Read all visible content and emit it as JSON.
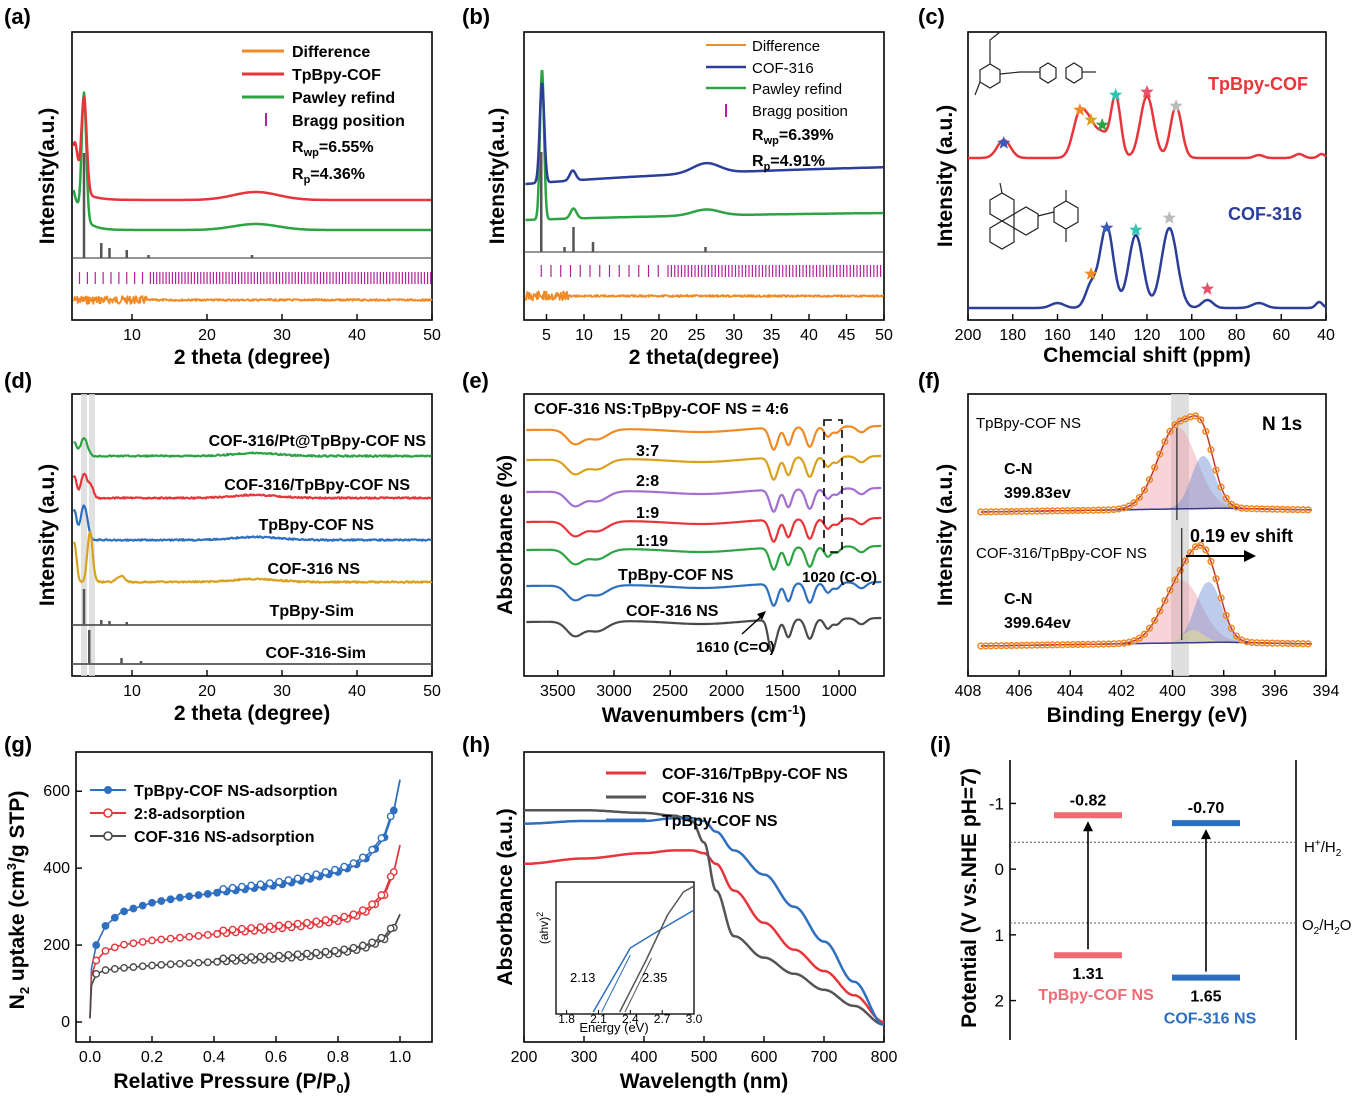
{
  "colors": {
    "red": "#e8353b",
    "green": "#2ca444",
    "orange": "#f08a24",
    "navy": "#2a3e9a",
    "magenta": "#b0219b",
    "grey": "#555555",
    "gold": "#d9a21e",
    "purple": "#a36fd0",
    "blue": "#2f6fc0",
    "darkgrey": "#4a4a4a",
    "pink": "#ee6b74",
    "steel": "#2d6fbf"
  },
  "panels": {
    "a": {
      "label": "(a)",
      "xlabel": "2 theta (degree)",
      "ylabel": "Intensity(a.u.)",
      "xticks": [
        "10",
        "20",
        "30",
        "40",
        "50"
      ],
      "legend": [
        "Difference",
        "TpBpy-COF",
        "Pawley refind",
        "Bragg position"
      ],
      "rwp": "R",
      "rwp_sub": "wp",
      "rwp_val": "=6.55%",
      "rp": "R",
      "rp_sub": "p",
      "rp_val": "=4.36%"
    },
    "b": {
      "label": "(b)",
      "xlabel": "2 theta(degree)",
      "ylabel": "Intensity(a.u.)",
      "xticks": [
        "5",
        "10",
        "15",
        "20",
        "25",
        "30",
        "35",
        "40",
        "45",
        "50"
      ],
      "legend": [
        "Difference",
        "COF-316",
        "Pawley refind",
        "Bragg position"
      ],
      "rwp": "R",
      "rwp_sub": "wp",
      "rwp_val": "=6.39%",
      "rp": "R",
      "rp_sub": "p",
      "rp_val": "=4.91%"
    },
    "c": {
      "label": "(c)",
      "xlabel": "Chemcial shift (ppm)",
      "ylabel": "Intensity (a.u.)",
      "xticks": [
        "200",
        "180",
        "160",
        "140",
        "120",
        "100",
        "80",
        "60",
        "40"
      ],
      "series": [
        "TpBpy-COF",
        "COF-316"
      ]
    },
    "d": {
      "label": "(d)",
      "xlabel": "2 theta (degree)",
      "ylabel": "Intensity (a.u.)",
      "xticks": [
        "10",
        "20",
        "30",
        "40",
        "50"
      ],
      "series": [
        "COF-316/Pt@TpBpy-COF NS",
        "COF-316/TpBpy-COF NS",
        "TpBpy-COF NS",
        "COF-316 NS",
        "TpBpy-Sim",
        "COF-316-Sim"
      ]
    },
    "e": {
      "label": "(e)",
      "xlabel": "Wavenumbers (cm",
      "xlabel_sup": "-1",
      "xlabel_end": ")",
      "ylabel": "Absorbance (%)",
      "xticks": [
        "3500",
        "3000",
        "2500",
        "2000",
        "1500",
        "1000"
      ],
      "ratio_title": "COF-316 NS:TpBpy-COF NS = 4:6",
      "ratios": [
        "3:7",
        "2:8",
        "1:9",
        "1:19"
      ],
      "lab_tp": "TpBpy-COF NS",
      "lab_cof": "COF-316 NS",
      "ann1": "1610 (C=O)",
      "ann2": "1020 (C-O)"
    },
    "f": {
      "label": "(f)",
      "xlabel": "Binding Energy (eV)",
      "ylabel": "Intensity (a.u.)",
      "xticks": [
        "408",
        "406",
        "404",
        "402",
        "400",
        "398",
        "396",
        "394"
      ],
      "title": "N 1s",
      "top_name": "TpBpy-COF NS",
      "bottom_name": "COF-316/TpBpy-COF NS",
      "cn": "C-N",
      "cn_top": "399.83ev",
      "cn_bottom": "399.64ev",
      "shift": "0.19 ev shift"
    },
    "g": {
      "label": "(g)",
      "xlabel": "Relative Pressure (P/P",
      "xlabel_sub": "0",
      "xlabel_end": ")",
      "ylabel": "N",
      "ylabel_sub": "2",
      "ylabel_mid": " uptake (cm",
      "ylabel_sup": "3",
      "ylabel_end": "/g STP)",
      "xticks": [
        "0.0",
        "0.2",
        "0.4",
        "0.6",
        "0.8",
        "1.0"
      ],
      "yticks": [
        "0",
        "200",
        "400",
        "600"
      ],
      "legend": [
        "TpBpy-COF NS-adsorption",
        "2:8-adsorption",
        "COF-316 NS-adsorption"
      ]
    },
    "h": {
      "label": "(h)",
      "xlabel": "Wavelength (nm)",
      "ylabel": "Absorbance (a.u.)",
      "xticks": [
        "200",
        "300",
        "400",
        "500",
        "600",
        "700",
        "800"
      ],
      "legend": [
        "COF-316/TpBpy-COF NS",
        "COF-316 NS",
        "TpBpy-COF NS"
      ],
      "inset_ylabel": "(ahv)",
      "inset_ylabel_sup": "2",
      "inset_xlabel": "Energy (eV)",
      "inset_xticks": [
        "1.8",
        "2.1",
        "2.4",
        "2.7",
        "3.0"
      ],
      "gap1": "2.13",
      "gap2": "2.35"
    },
    "i": {
      "label": "(i)",
      "ylabel": "Potential (V vs.NHE pH=7)",
      "yticks": [
        "-1",
        "0",
        "1",
        "2"
      ],
      "tp_cb": "-0.82",
      "tp_vb": "1.31",
      "cof_cb": "-0.70",
      "cof_vb": "1.65",
      "tp_name": "TpBpy-COF NS",
      "cof_name": "COF-316 NS",
      "h_ref": "H",
      "h_ref_sup": "+",
      "h_ref_end": "/H",
      "h_ref_sub": "2",
      "o_ref": "O",
      "o_ref_sub": "2",
      "o_ref_end": "/H",
      "o_ref_sub2": "2",
      "o_ref_tail": "O"
    }
  },
  "chart_data": [
    {
      "panel": "a",
      "type": "line",
      "xlim": [
        2,
        50
      ],
      "x": [
        2,
        3,
        4,
        5,
        7,
        10,
        15,
        20,
        25,
        27,
        30,
        40,
        50
      ],
      "series": [
        {
          "name": "TpBpy-COF",
          "values": [
            10,
            9,
            8.8,
            5,
            4.6,
            4.5,
            4.5,
            4.5,
            4.55,
            4.7,
            4.5,
            4.4,
            4.3
          ]
        },
        {
          "name": "Pawley refind",
          "values": [
            10,
            7,
            8,
            3,
            2.5,
            2.4,
            2.4,
            2.4,
            2.5,
            2.6,
            2.45,
            2.3,
            2.2
          ]
        },
        {
          "name": "Difference",
          "values": [
            0.1,
            0,
            0.1,
            0,
            0,
            0,
            0,
            0,
            0,
            0,
            0,
            0,
            0
          ]
        }
      ],
      "peaks_deg": [
        3.6,
        5.9,
        7.0,
        9.3,
        12.2,
        26.0
      ]
    },
    {
      "panel": "b",
      "type": "line",
      "xlim": [
        2,
        50
      ],
      "x": [
        2,
        3,
        4.5,
        6,
        8.5,
        10,
        15,
        20,
        26,
        30,
        40,
        50
      ],
      "series": [
        {
          "name": "COF-316",
          "values": [
            6.5,
            6,
            9.8,
            6,
            5.4,
            5.3,
            5.3,
            5.3,
            5.6,
            5.3,
            5.1,
            5.0
          ]
        },
        {
          "name": "Pawley refind",
          "values": [
            4.5,
            3.8,
            8,
            3.5,
            3.4,
            3.2,
            3.2,
            3.2,
            3.3,
            3.1,
            3.0,
            2.9
          ]
        },
        {
          "name": "Difference",
          "values": [
            0.1,
            0.1,
            0.2,
            0,
            0,
            0,
            0,
            0,
            0,
            0,
            0,
            0
          ]
        }
      ],
      "peaks_deg": [
        4.3,
        7.4,
        8.6,
        11.2,
        26.2
      ]
    },
    {
      "panel": "c",
      "type": "line",
      "xlim": [
        200,
        40
      ],
      "series": [
        {
          "name": "TpBpy-COF",
          "peaks_ppm": [
            184,
            150,
            145,
            140,
            134,
            120,
            107
          ]
        },
        {
          "name": "COF-316",
          "peaks_ppm": [
            145,
            138,
            125,
            110,
            93
          ]
        }
      ]
    },
    {
      "panel": "d",
      "type": "line",
      "xlim": [
        2,
        50
      ],
      "series": [
        {
          "name": "COF-316/Pt@TpBpy-COF NS"
        },
        {
          "name": "COF-316/TpBpy-COF NS"
        },
        {
          "name": "TpBpy-COF NS"
        },
        {
          "name": "COF-316 NS"
        },
        {
          "name": "TpBpy-Sim"
        },
        {
          "name": "COF-316-Sim"
        }
      ]
    },
    {
      "panel": "e",
      "type": "line",
      "xlim": [
        3800,
        600
      ],
      "series": [
        {
          "name": "4:6"
        },
        {
          "name": "3:7"
        },
        {
          "name": "2:8"
        },
        {
          "name": "1:9"
        },
        {
          "name": "1:19"
        },
        {
          "name": "TpBpy-COF NS"
        },
        {
          "name": "COF-316 NS"
        }
      ]
    },
    {
      "panel": "f",
      "type": "line",
      "xlim": [
        408,
        394
      ],
      "peaks_eV": {
        "TpBpy-COF NS": [
          399.83,
          398.8
        ],
        "COF-316/TpBpy-COF NS": [
          399.64,
          398.6
        ]
      }
    },
    {
      "panel": "g",
      "type": "line",
      "xlim": [
        0,
        1
      ],
      "ylim": [
        0,
        650
      ],
      "x": [
        0,
        0.005,
        0.02,
        0.05,
        0.1,
        0.2,
        0.3,
        0.4,
        0.5,
        0.6,
        0.7,
        0.8,
        0.85,
        0.9,
        0.95,
        0.98,
        1.0
      ],
      "series": [
        {
          "name": "TpBpy-COF NS-adsorption",
          "values": [
            10,
            140,
            200,
            250,
            285,
            310,
            325,
            335,
            345,
            355,
            370,
            390,
            405,
            430,
            480,
            550,
            630
          ]
        },
        {
          "name": "2:8-adsorption",
          "values": [
            10,
            120,
            160,
            185,
            200,
            212,
            220,
            228,
            235,
            242,
            250,
            262,
            272,
            290,
            330,
            390,
            460
          ]
        },
        {
          "name": "COF-316 NS-adsorption",
          "values": [
            10,
            95,
            125,
            135,
            140,
            147,
            152,
            156,
            160,
            164,
            170,
            178,
            185,
            195,
            215,
            245,
            280
          ]
        }
      ]
    },
    {
      "panel": "h",
      "type": "line",
      "xlim": [
        200,
        800
      ],
      "x": [
        200,
        300,
        400,
        450,
        480,
        500,
        520,
        550,
        600,
        650,
        700,
        750,
        800
      ],
      "series": [
        {
          "name": "COF-316/TpBpy-COF NS",
          "values": [
            0.62,
            0.64,
            0.66,
            0.67,
            0.67,
            0.66,
            0.62,
            0.52,
            0.4,
            0.3,
            0.22,
            0.13,
            0.03
          ]
        },
        {
          "name": "COF-316 NS",
          "values": [
            0.82,
            0.82,
            0.81,
            0.8,
            0.78,
            0.7,
            0.52,
            0.35,
            0.27,
            0.21,
            0.15,
            0.09,
            0.02
          ]
        },
        {
          "name": "TpBpy-COF NS",
          "values": [
            0.77,
            0.78,
            0.78,
            0.79,
            0.79,
            0.78,
            0.74,
            0.67,
            0.58,
            0.46,
            0.33,
            0.18,
            0.02
          ]
        }
      ]
    },
    {
      "panel": "i",
      "type": "bar",
      "ylim": [
        -1.6,
        2.6
      ],
      "series": [
        {
          "name": "TpBpy-COF NS",
          "CB": -0.82,
          "VB": 1.31
        },
        {
          "name": "COF-316 NS",
          "CB": -0.7,
          "VB": 1.65
        }
      ],
      "refs": {
        "H+/H2": -0.41,
        "O2/H2O": 0.82
      }
    }
  ]
}
